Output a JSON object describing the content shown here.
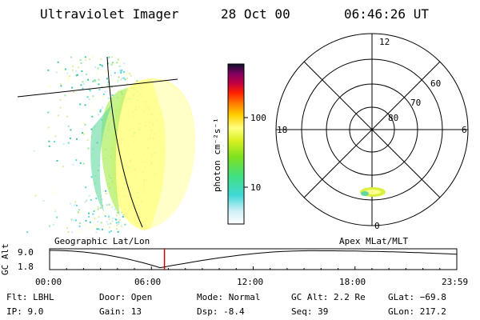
{
  "header": {
    "instrument": "Ultraviolet Imager",
    "date": "28 Oct 00",
    "time": "06:46:26 UT"
  },
  "colorbar": {
    "unit_label": "photon cm⁻²s⁻¹",
    "ticks": [
      "100",
      "10"
    ]
  },
  "polar": {
    "mlt_labels": {
      "top": "12",
      "bottom": "0",
      "left": "18",
      "right": "6"
    },
    "lat_labels": [
      "60",
      "70",
      "80"
    ]
  },
  "panel_titles": {
    "left": "Geographic Lat/Lon",
    "right": "Apex MLat/MLT"
  },
  "alt_plot": {
    "ylabel": "GC Alt",
    "ymax": "9.0",
    "ymin": "1.8",
    "xticks": [
      "00:00",
      "06:00",
      "12:00",
      "18:00",
      "23:59"
    ],
    "marker_time_hours": 6.77,
    "marker_color": "#cc0000"
  },
  "info": {
    "flt": "Flt: LBHL",
    "ip": "IP:  9.0",
    "door": "Door: Open",
    "gain": "Gain: 13",
    "mode": "Mode: Normal",
    "dsp": "Dsp:    -8.4",
    "gcalt": "GC Alt: 2.2 Re",
    "seq": "Seq: 39",
    "glat": "GLat: −69.8",
    "glon": "GLon: 217.2"
  }
}
